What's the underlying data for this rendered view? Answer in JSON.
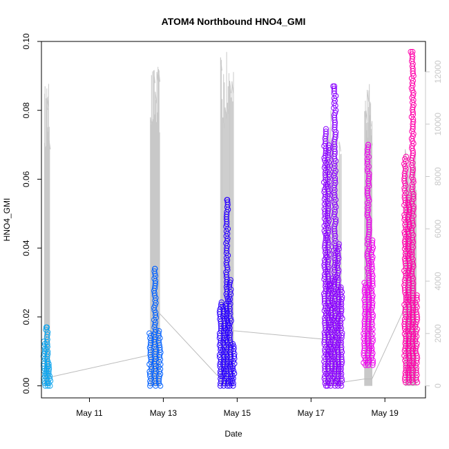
{
  "chart_data": {
    "type": "scatter",
    "title": "ATOM4 Northbound HNO4_GMI",
    "xlabel": "Date",
    "ylabel": "HNO4_GMI",
    "y2label": "",
    "xticks": [
      "May 11",
      "May 13",
      "May 15",
      "May 17",
      "May 19"
    ],
    "yticks": [
      "0.00",
      "0.02",
      "0.04",
      "0.06",
      "0.08",
      "0.10"
    ],
    "y2ticks": [
      "0",
      "2000",
      "4000",
      "6000",
      "8000",
      "10000",
      "12000"
    ],
    "xlim": [
      "2018-05-09.7",
      "2018-05-20.1"
    ],
    "ylim": [
      -0.0035,
      0.1
    ],
    "y2lim": [
      -460,
      13160
    ],
    "grid": false,
    "legend": "none",
    "series": [
      {
        "date": "May 10",
        "x_start": 9.78,
        "x_end": 9.92,
        "y_min": 0.0,
        "y_max": 0.017,
        "color": "#0ea5ee"
      },
      {
        "date": "May 13",
        "x_start": 12.65,
        "x_end": 12.9,
        "y_min": 0.0,
        "y_max": 0.034,
        "color": "#0060ff"
      },
      {
        "date": "May 15",
        "x_start": 14.55,
        "x_end": 14.9,
        "y_min": 0.0,
        "y_max": 0.054,
        "color": "#2a00ff"
      },
      {
        "date": "May 17",
        "x_start": 17.38,
        "x_end": 17.82,
        "y_min": 0.0,
        "y_max": 0.087,
        "color": "#8a00ff"
      },
      {
        "date": "May 18",
        "x_start": 18.45,
        "x_end": 18.65,
        "y_min": 0.006,
        "y_max": 0.07,
        "color": "#ee00ee"
      },
      {
        "date": "May 19",
        "x_start": 19.55,
        "x_end": 19.85,
        "y_min": 0.001,
        "y_max": 0.097,
        "color": "#ff00aa"
      }
    ],
    "connector_color": "#bbbbbb",
    "altitude_color": "#c8c8c8"
  }
}
